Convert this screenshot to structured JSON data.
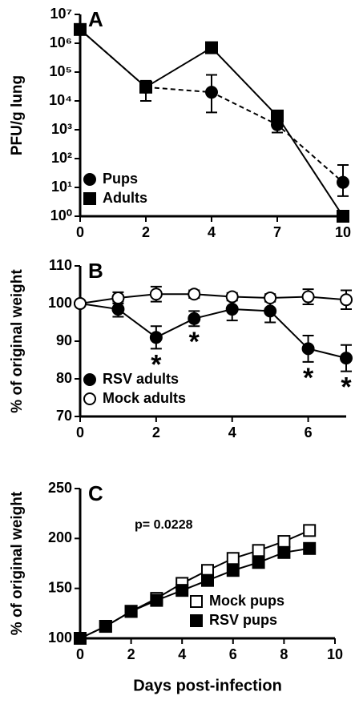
{
  "chart_data": [
    {
      "type": "line",
      "panel": "A",
      "y_label": "PFU/g lung",
      "log_scale": true,
      "legend": "lower left",
      "categories": [
        "0",
        "2",
        "4",
        "7",
        "10"
      ],
      "ylim": [
        1,
        10000000
      ],
      "yticks": [
        {
          "value": 1,
          "label": "10⁰"
        },
        {
          "value": 10,
          "label": "10¹"
        },
        {
          "value": 100,
          "label": "10²"
        },
        {
          "value": 1000,
          "label": "10³"
        },
        {
          "value": 10000,
          "label": "10⁴"
        },
        {
          "value": 100000,
          "label": "10⁵"
        },
        {
          "value": 1000000,
          "label": "10⁶"
        },
        {
          "value": 10000000,
          "label": "10⁷"
        }
      ],
      "series": [
        {
          "name": "Pups",
          "color": "#000000",
          "marker": "circle",
          "filled": true,
          "dash": true,
          "values": [
            3000000,
            30000,
            20000,
            1500,
            15
          ],
          "err_low": [
            null,
            10000,
            4000,
            800,
            5
          ],
          "err_high": [
            null,
            50000,
            80000,
            3000,
            60
          ]
        },
        {
          "name": "Adults",
          "color": "#000000",
          "marker": "square",
          "filled": true,
          "dash": false,
          "values": [
            3000000,
            30000,
            700000,
            3000,
            1
          ]
        }
      ]
    },
    {
      "type": "line",
      "panel": "B",
      "y_label": "% of original weight",
      "legend": "lower left",
      "x": [
        0,
        1,
        2,
        3,
        4,
        5,
        6,
        7
      ],
      "xlim": [
        0,
        7
      ],
      "xticks": [
        0,
        2,
        4,
        6
      ],
      "ylim": [
        70,
        110
      ],
      "yticks": [
        70,
        80,
        90,
        100,
        110
      ],
      "series": [
        {
          "name": "RSV adults",
          "color": "#000000",
          "marker": "circle",
          "filled": true,
          "dash": false,
          "values": [
            100,
            98.5,
            91,
            96,
            98.5,
            98,
            88,
            85.5
          ],
          "errors": [
            0,
            2,
            3,
            2,
            3,
            3,
            3.5,
            3.5
          ]
        },
        {
          "name": "Mock adults",
          "color": "#000000",
          "marker": "circle",
          "filled": false,
          "dash": false,
          "values": [
            100,
            101.5,
            102.5,
            102.5,
            101.8,
            101.5,
            101.8,
            101
          ],
          "errors": [
            0,
            1.5,
            2,
            1,
            1,
            1,
            2,
            2.5
          ]
        }
      ],
      "annotations": [
        {
          "text": "*",
          "x": 2
        },
        {
          "text": "*",
          "x": 3
        },
        {
          "text": "*",
          "x": 6
        },
        {
          "text": "*",
          "x": 7
        }
      ]
    },
    {
      "type": "line",
      "panel": "C",
      "y_label": "% of original weight",
      "x_label": "Days post-infection",
      "legend": "lower right",
      "x": [
        0,
        1,
        2,
        3,
        4,
        5,
        6,
        7,
        8,
        9
      ],
      "xlim": [
        0,
        10
      ],
      "xticks": [
        0,
        2,
        4,
        6,
        8,
        10
      ],
      "ylim": [
        100,
        250
      ],
      "yticks": [
        100,
        150,
        200,
        250
      ],
      "series": [
        {
          "name": "Mock pups",
          "color": "#000000",
          "marker": "square",
          "filled": false,
          "dash": false,
          "values": [
            100,
            112,
            127,
            140,
            155,
            168,
            180,
            188,
            197,
            208
          ]
        },
        {
          "name": "RSV pups",
          "color": "#000000",
          "marker": "square",
          "filled": true,
          "dash": false,
          "values": [
            100,
            112,
            127,
            138,
            148,
            158,
            168,
            176,
            186,
            190
          ]
        }
      ],
      "annotations": [
        {
          "text": "p= 0.0228"
        }
      ]
    }
  ]
}
